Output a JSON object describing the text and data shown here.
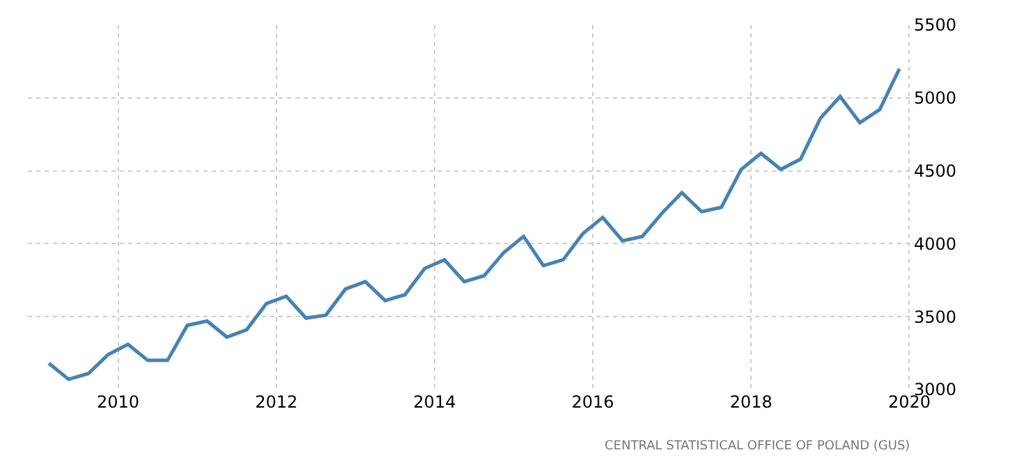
{
  "chart_data": {
    "type": "line",
    "x": [
      2009.125,
      2009.375,
      2009.625,
      2009.875,
      2010.125,
      2010.375,
      2010.625,
      2010.875,
      2011.125,
      2011.375,
      2011.625,
      2011.875,
      2012.125,
      2012.375,
      2012.625,
      2012.875,
      2013.125,
      2013.375,
      2013.625,
      2013.875,
      2014.125,
      2014.375,
      2014.625,
      2014.875,
      2015.125,
      2015.375,
      2015.625,
      2015.875,
      2016.125,
      2016.375,
      2016.625,
      2016.875,
      2017.125,
      2017.375,
      2017.625,
      2017.875,
      2018.125,
      2018.375,
      2018.625,
      2018.875,
      2019.125,
      2019.375,
      2019.625,
      2019.875
    ],
    "series": [
      {
        "color": "#4682b4",
        "values": [
          3180,
          3070,
          3110,
          3240,
          3310,
          3200,
          3200,
          3440,
          3470,
          3360,
          3410,
          3590,
          3640,
          3490,
          3510,
          3690,
          3740,
          3610,
          3650,
          3830,
          3890,
          3740,
          3780,
          3940,
          4050,
          3850,
          3890,
          4070,
          4180,
          4020,
          4050,
          4210,
          4350,
          4220,
          4250,
          4510,
          4620,
          4510,
          4580,
          4860,
          5010,
          4830,
          4920,
          5200
        ]
      }
    ],
    "xlim": [
      2008.86,
      2020.04
    ],
    "xticks": [
      2010,
      2012,
      2014,
      2016,
      2018,
      2020
    ],
    "ylim": [
      3000,
      5500
    ],
    "yticks": [
      3000,
      3500,
      4000,
      4500,
      5000,
      5500
    ],
    "grid": true,
    "marker": "none",
    "line_style": "solid",
    "annotations": [
      "CENTRAL STATISTICAL OFFICE OF POLAND (GUS)"
    ]
  }
}
